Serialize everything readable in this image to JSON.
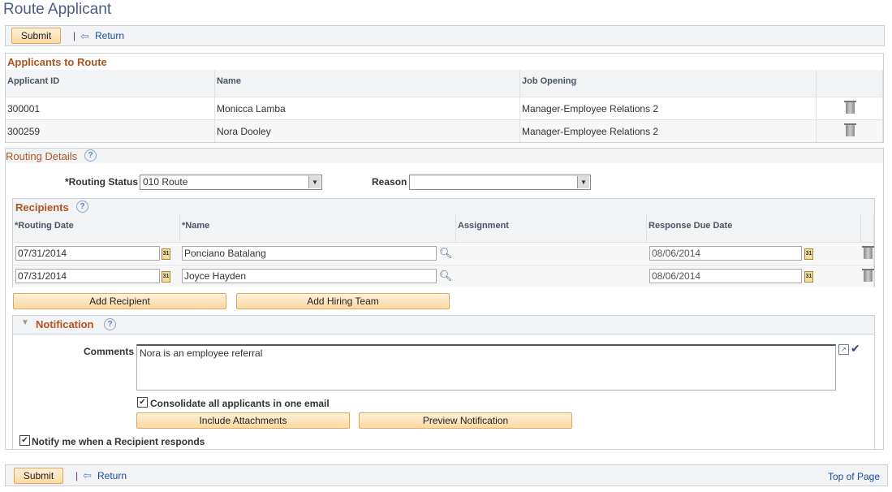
{
  "page": {
    "title": "Route Applicant"
  },
  "toolbar": {
    "submit": "Submit",
    "separator": "|",
    "return": "Return",
    "top_of_page": "Top of Page"
  },
  "applicants": {
    "title": "Applicants to Route",
    "columns": [
      "Applicant ID",
      "Name",
      "Job Opening"
    ],
    "rows": [
      {
        "id": "300001",
        "name": "Monicca Lamba",
        "job": "Manager-Employee Relations 2"
      },
      {
        "id": "300259",
        "name": "Nora Dooley",
        "job": "Manager-Employee Relations 2"
      }
    ]
  },
  "routing": {
    "title": "Routing Details",
    "status_label": "*Routing Status",
    "status_value": "010 Route",
    "reason_label": "Reason",
    "reason_value": ""
  },
  "recipients": {
    "title": "Recipients",
    "columns": [
      "*Routing Date",
      "*Name",
      "Assignment",
      "Response Due Date"
    ],
    "rows": [
      {
        "date": "07/31/2014",
        "name": "Ponciano Batalang",
        "assignment": "",
        "due": "08/06/2014"
      },
      {
        "date": "07/31/2014",
        "name": "Joyce Hayden",
        "assignment": "",
        "due": "08/06/2014"
      }
    ],
    "add_recipient": "Add Recipient",
    "add_hiring_team": "Add Hiring Team"
  },
  "notification": {
    "title": "Notification",
    "comments_label": "Comments",
    "comments_value": "Nora is an employee referral",
    "consolidate_label": "Consolidate all applicants in one email",
    "consolidate_checked": true,
    "include_attachments": "Include Attachments",
    "preview": "Preview Notification"
  },
  "notify": {
    "label": "Notify me when a Recipient responds",
    "checked": true
  },
  "icons": {
    "calendar": "calendar-icon",
    "lookup": "magnifier-icon",
    "delete": "trash-icon",
    "help": "help-icon",
    "return": "left-arrow-icon"
  }
}
